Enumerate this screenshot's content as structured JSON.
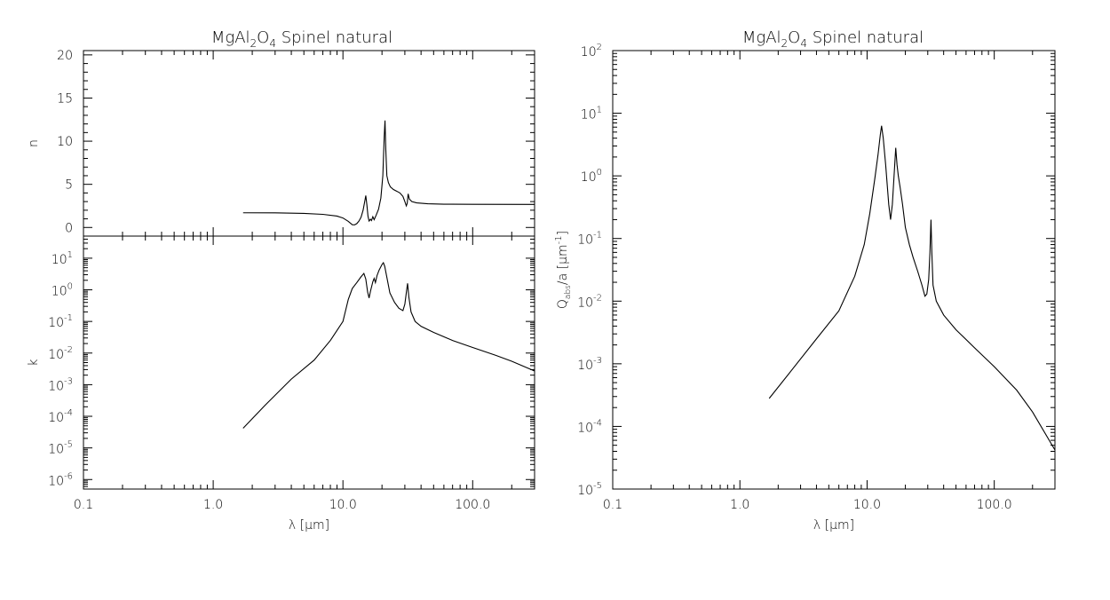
{
  "chart_data": [
    {
      "id": "n",
      "type": "line",
      "title": "MgAl₂O₄ Spinel natural",
      "xlabel": "",
      "ylabel": "n",
      "xscale": "log",
      "yscale": "linear",
      "xlim": [
        0.1,
        300
      ],
      "ylim": [
        -1,
        20.5
      ],
      "xticks": [],
      "yticks": [
        {
          "value": 0,
          "label": "0"
        },
        {
          "value": 5,
          "label": "5"
        },
        {
          "value": 10,
          "label": "10"
        },
        {
          "value": 15,
          "label": "15"
        },
        {
          "value": 20,
          "label": "20"
        }
      ],
      "series": [
        {
          "points": [
            [
              1.7,
              1.7
            ],
            [
              3,
              1.69
            ],
            [
              5,
              1.63
            ],
            [
              7,
              1.52
            ],
            [
              9,
              1.32
            ],
            [
              10,
              1.1
            ],
            [
              11,
              0.7
            ],
            [
              11.8,
              0.32
            ],
            [
              12.3,
              0.3
            ],
            [
              12.8,
              0.45
            ],
            [
              13.3,
              0.75
            ],
            [
              13.8,
              1.2
            ],
            [
              14.3,
              2.0
            ],
            [
              14.8,
              3.2
            ],
            [
              15.0,
              3.7
            ],
            [
              15.3,
              2.6
            ],
            [
              15.6,
              1.3
            ],
            [
              15.9,
              0.75
            ],
            [
              16.3,
              0.95
            ],
            [
              16.6,
              0.8
            ],
            [
              17.0,
              1.25
            ],
            [
              17.4,
              0.9
            ],
            [
              18.0,
              1.4
            ],
            [
              18.8,
              2.1
            ],
            [
              19.6,
              3.4
            ],
            [
              20.3,
              6.0
            ],
            [
              20.8,
              10.5
            ],
            [
              21.1,
              12.4
            ],
            [
              21.4,
              9.0
            ],
            [
              21.8,
              6.0
            ],
            [
              22.4,
              5.2
            ],
            [
              23.2,
              4.7
            ],
            [
              24.5,
              4.4
            ],
            [
              26,
              4.2
            ],
            [
              27.5,
              4.0
            ],
            [
              29,
              3.6
            ],
            [
              30,
              3.0
            ],
            [
              30.8,
              2.5
            ],
            [
              31.3,
              2.8
            ],
            [
              31.8,
              3.9
            ],
            [
              32.5,
              3.3
            ],
            [
              34,
              3.0
            ],
            [
              37,
              2.85
            ],
            [
              45,
              2.75
            ],
            [
              60,
              2.7
            ],
            [
              100,
              2.68
            ],
            [
              300,
              2.67
            ]
          ]
        }
      ]
    },
    {
      "id": "k",
      "type": "line",
      "xlabel": "λ [μm]",
      "ylabel": "k",
      "xscale": "log",
      "yscale": "log",
      "xlim": [
        0.1,
        300
      ],
      "ylim": [
        5e-07,
        50
      ],
      "xticks": [
        {
          "value": 0.1,
          "label": "0.1"
        },
        {
          "value": 1,
          "label": "1.0"
        },
        {
          "value": 10,
          "label": "10.0"
        },
        {
          "value": 100,
          "label": "100.0"
        }
      ],
      "yticks": [
        {
          "value": 1e-06,
          "base": "10",
          "exp": "-6"
        },
        {
          "value": 1e-05,
          "base": "10",
          "exp": "-5"
        },
        {
          "value": 0.0001,
          "base": "10",
          "exp": "-4"
        },
        {
          "value": 0.001,
          "base": "10",
          "exp": "-3"
        },
        {
          "value": 0.01,
          "base": "10",
          "exp": "-2"
        },
        {
          "value": 0.1,
          "base": "10",
          "exp": "-1"
        },
        {
          "value": 1,
          "base": "10",
          "exp": "0"
        },
        {
          "value": 10,
          "base": "10",
          "exp": "1"
        }
      ],
      "series": [
        {
          "points": [
            [
              1.7,
              4.2e-05
            ],
            [
              2.5,
              0.00022
            ],
            [
              4,
              0.0015
            ],
            [
              6,
              0.006
            ],
            [
              8,
              0.025
            ],
            [
              10,
              0.1
            ],
            [
              11,
              0.5
            ],
            [
              11.8,
              1.1
            ],
            [
              12.8,
              1.7
            ],
            [
              13.8,
              2.6
            ],
            [
              14.5,
              3.3
            ],
            [
              15.0,
              2.2
            ],
            [
              15.5,
              0.85
            ],
            [
              15.9,
              0.55
            ],
            [
              16.3,
              0.9
            ],
            [
              17.0,
              1.8
            ],
            [
              17.4,
              2.3
            ],
            [
              17.8,
              1.7
            ],
            [
              18.3,
              2.8
            ],
            [
              19.0,
              4.2
            ],
            [
              20.0,
              6.3
            ],
            [
              20.5,
              7.2
            ],
            [
              21.0,
              5.5
            ],
            [
              21.8,
              2.5
            ],
            [
              23,
              0.8
            ],
            [
              25,
              0.4
            ],
            [
              27,
              0.26
            ],
            [
              29,
              0.22
            ],
            [
              30,
              0.35
            ],
            [
              31,
              1.0
            ],
            [
              31.5,
              1.6
            ],
            [
              32.2,
              0.6
            ],
            [
              33.5,
              0.2
            ],
            [
              36,
              0.1
            ],
            [
              40,
              0.07
            ],
            [
              50,
              0.045
            ],
            [
              70,
              0.025
            ],
            [
              100,
              0.015
            ],
            [
              150,
              0.0085
            ],
            [
              200,
              0.0055
            ],
            [
              300,
              0.0027
            ]
          ]
        }
      ]
    },
    {
      "id": "qabs",
      "type": "line",
      "title": "MgAl₂O₄ Spinel natural",
      "xlabel": "λ [μm]",
      "ylabel": "Qabs/a [μm-1]",
      "xscale": "log",
      "yscale": "log",
      "xlim": [
        0.1,
        300
      ],
      "ylim": [
        1e-05,
        100
      ],
      "xticks": [
        {
          "value": 0.1,
          "label": "0.1"
        },
        {
          "value": 1,
          "label": "1.0"
        },
        {
          "value": 10,
          "label": "10.0"
        },
        {
          "value": 100,
          "label": "100.0"
        }
      ],
      "yticks": [
        {
          "value": 1e-05,
          "base": "10",
          "exp": "-5"
        },
        {
          "value": 0.0001,
          "base": "10",
          "exp": "-4"
        },
        {
          "value": 0.001,
          "base": "10",
          "exp": "-3"
        },
        {
          "value": 0.01,
          "base": "10",
          "exp": "-2"
        },
        {
          "value": 0.1,
          "base": "10",
          "exp": "-1"
        },
        {
          "value": 1,
          "base": "10",
          "exp": "0"
        },
        {
          "value": 10,
          "base": "10",
          "exp": "1"
        },
        {
          "value": 100,
          "base": "10",
          "exp": "2"
        }
      ],
      "series": [
        {
          "points": [
            [
              1.7,
              0.00028
            ],
            [
              2.5,
              0.00075
            ],
            [
              4,
              0.0025
            ],
            [
              6,
              0.007
            ],
            [
              8,
              0.025
            ],
            [
              9.5,
              0.08
            ],
            [
              10.5,
              0.25
            ],
            [
              11.5,
              0.9
            ],
            [
              12.2,
              2.2
            ],
            [
              12.7,
              4.5
            ],
            [
              13.0,
              6.3
            ],
            [
              13.4,
              4.0
            ],
            [
              14.0,
              1.5
            ],
            [
              14.8,
              0.35
            ],
            [
              15.3,
              0.2
            ],
            [
              15.8,
              0.35
            ],
            [
              16.3,
              1.0
            ],
            [
              16.8,
              2.8
            ],
            [
              17.2,
              1.5
            ],
            [
              17.6,
              1.0
            ],
            [
              18.2,
              0.65
            ],
            [
              19.0,
              0.35
            ],
            [
              20.0,
              0.15
            ],
            [
              21.5,
              0.08
            ],
            [
              23.0,
              0.05
            ],
            [
              25,
              0.03
            ],
            [
              27,
              0.018
            ],
            [
              28.5,
              0.012
            ],
            [
              29.5,
              0.013
            ],
            [
              30.5,
              0.022
            ],
            [
              31.2,
              0.06
            ],
            [
              31.8,
              0.2
            ],
            [
              32.3,
              0.06
            ],
            [
              33.0,
              0.018
            ],
            [
              35,
              0.01
            ],
            [
              40,
              0.006
            ],
            [
              50,
              0.0035
            ],
            [
              70,
              0.0018
            ],
            [
              100,
              0.0009
            ],
            [
              150,
              0.00038
            ],
            [
              200,
              0.00017
            ],
            [
              300,
              4.2e-05
            ]
          ]
        }
      ]
    }
  ]
}
